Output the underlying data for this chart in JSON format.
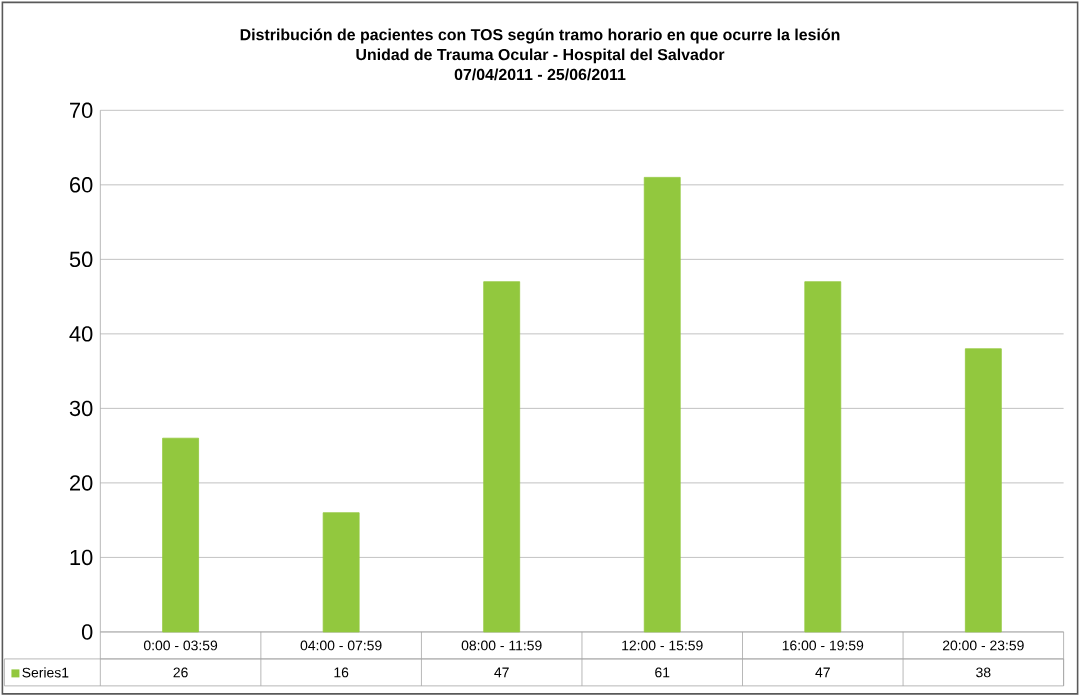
{
  "chart_data": {
    "type": "bar",
    "title": "Distribución de pacientes con TOS según tramo horario en que ocurre la lesión",
    "subtitle": "Unidad de Trauma Ocular - Hospital del Salvador",
    "annotations": [
      "07/04/2011 - 25/06/2011"
    ],
    "categories": [
      "0:00 - 03:59",
      "04:00 - 07:59",
      "08:00 - 11:59",
      "12:00 - 15:59",
      "16:00 - 19:59",
      "20:00 - 23:59"
    ],
    "series": [
      {
        "name": "Series1",
        "color": "#92c83e",
        "values": [
          26,
          16,
          47,
          61,
          47,
          38
        ]
      }
    ],
    "ylim": [
      0,
      70
    ],
    "yticks": [
      0,
      10,
      20,
      30,
      40,
      50,
      60,
      70
    ],
    "grid": "y",
    "data_labels": true
  }
}
